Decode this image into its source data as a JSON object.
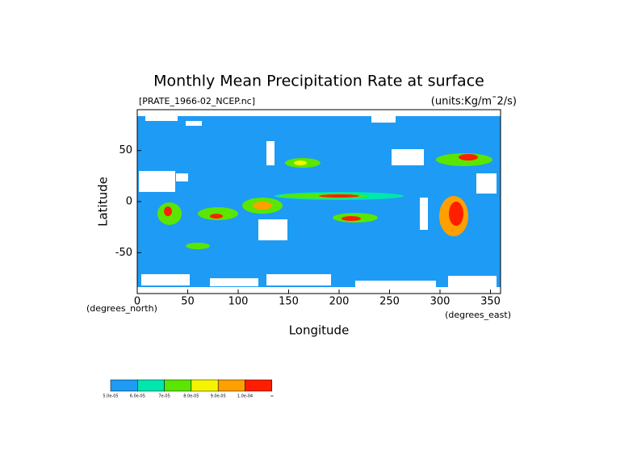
{
  "chart_data": {
    "type": "map",
    "title": "Monthly Mean Precipitation Rate at surface",
    "subtitle_left": "[PRATE_1966-02_NCEP.nc]",
    "subtitle_right": "(units:Kg/m¯2/s)",
    "xlabel": "Longitude",
    "ylabel": "Latitude",
    "xunit": "(degrees_east)",
    "yunit": "(degrees_north)",
    "xlim": [
      0,
      360
    ],
    "ylim": [
      -90,
      90
    ],
    "xticks": [
      0,
      50,
      100,
      150,
      200,
      250,
      300,
      350
    ],
    "yticks": [
      -50,
      0,
      50
    ],
    "colorbar": {
      "colors": [
        "#1e9bf5",
        "#00e6af",
        "#5ae600",
        "#f5f500",
        "#ffa000",
        "#ff1e00"
      ],
      "labels": [
        "5.0e-05",
        "6.0e-05",
        "7e-05",
        "8.0e-05",
        "9.0e-05",
        "1.0e-04",
        "∞"
      ]
    }
  }
}
